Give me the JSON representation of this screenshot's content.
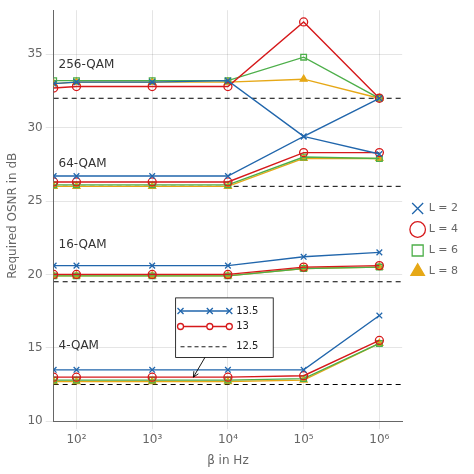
{
  "chart_data": {
    "type": "line",
    "x": [
      50,
      100,
      1000,
      10000,
      100000,
      1000000
    ],
    "log": "x",
    "xlim": [
      50,
      2000000
    ],
    "xticks": [
      {
        "value": 100,
        "label": "10²"
      },
      {
        "value": 1000,
        "label": "10³"
      },
      {
        "value": 10000,
        "label": "10⁴"
      },
      {
        "value": 100000,
        "label": "10⁵"
      },
      {
        "value": 1000000,
        "label": "10⁶"
      }
    ],
    "ylim": [
      10,
      38
    ],
    "yticks": [
      10,
      15,
      20,
      25,
      30,
      35
    ],
    "x_label": "β in Hz",
    "y_label": "Required OSNR in dB",
    "grid": true,
    "legend": "right",
    "series": [
      {
        "name": "L = 2",
        "color": "#2166AC",
        "marker": "x",
        "values": [
          13.5,
          13.5,
          13.5,
          13.5,
          13.5,
          17.2
        ]
      },
      {
        "name": "L = 4",
        "color": "#D6191B",
        "marker": "circle_open",
        "values": [
          13.0,
          13.0,
          13.0,
          13.0,
          13.1,
          15.5
        ]
      },
      {
        "name": "L = 6",
        "color": "#4DAF4A",
        "marker": "square_open",
        "values": [
          12.8,
          12.8,
          12.8,
          12.8,
          12.9,
          15.3
        ]
      },
      {
        "name": "L = 8",
        "color": "#E6A817",
        "marker": "triangle",
        "values": [
          12.7,
          12.7,
          12.7,
          12.7,
          12.8,
          15.3
        ]
      },
      {
        "color": "#2166AC",
        "marker": "x",
        "values": [
          20.6,
          20.6,
          20.6,
          20.6,
          21.2,
          21.5
        ]
      },
      {
        "color": "#D6191B",
        "marker": "circle_open",
        "values": [
          20.0,
          20.0,
          20.0,
          20.0,
          20.5,
          20.6
        ]
      },
      {
        "color": "#4DAF4A",
        "marker": "square_open",
        "values": [
          19.9,
          19.9,
          19.9,
          19.9,
          20.4,
          20.5
        ]
      },
      {
        "color": "#E6A817",
        "marker": "triangle",
        "values": [
          19.9,
          19.9,
          19.9,
          19.9,
          20.4,
          20.5
        ]
      },
      {
        "color": "#2166AC",
        "marker": "x",
        "values": [
          26.7,
          26.7,
          26.7,
          26.7,
          29.4,
          28.2
        ]
      },
      {
        "color": "#D6191B",
        "marker": "circle_open",
        "values": [
          26.3,
          26.3,
          26.3,
          26.3,
          28.3,
          28.3
        ]
      },
      {
        "color": "#4DAF4A",
        "marker": "square_open",
        "values": [
          26.1,
          26.1,
          26.1,
          26.1,
          28.0,
          27.9
        ]
      },
      {
        "color": "#E6A817",
        "marker": "triangle",
        "values": [
          26.0,
          26.0,
          26.0,
          26.0,
          27.9,
          27.9
        ]
      },
      {
        "color": "#2166AC",
        "marker": "x",
        "values": [
          33.0,
          33.1,
          33.1,
          33.2,
          29.4,
          32.0
        ]
      },
      {
        "color": "#D6191B",
        "marker": "circle_open",
        "values": [
          32.7,
          32.8,
          32.8,
          32.8,
          37.2,
          32.0
        ]
      },
      {
        "color": "#4DAF4A",
        "marker": "square_open",
        "values": [
          33.2,
          33.2,
          33.2,
          33.2,
          34.8,
          32.0
        ]
      },
      {
        "color": "#E6A817",
        "marker": "triangle",
        "values": [
          33.0,
          33.1,
          33.1,
          33.1,
          33.3,
          32.0
        ]
      }
    ],
    "reference_lines": {
      "values": [
        32.0,
        26.0,
        19.5,
        12.5
      ],
      "line_style": "dashed",
      "color": "#000000"
    },
    "annotations": [
      {
        "text": "256-QAM",
        "x": 58,
        "y": 34.3
      },
      {
        "text": "64-QAM",
        "x": 58,
        "y": 27.5
      },
      {
        "text": "16-QAM",
        "x": 58,
        "y": 22.0
      },
      {
        "text": "4-QAM",
        "x": 58,
        "y": 15.1
      }
    ],
    "inset": {
      "entries": [
        {
          "label": "13.5",
          "color": "#2166AC",
          "marker": "x",
          "line_style": "solid"
        },
        {
          "label": "13",
          "color": "#D6191B",
          "marker": "circle_open",
          "line_style": "solid"
        },
        {
          "label": "12.5",
          "color": "#000000",
          "line_style": "dashed"
        }
      ]
    },
    "arrow": {
      "x": 3500,
      "y": 13.0,
      "color": "#000000"
    }
  }
}
